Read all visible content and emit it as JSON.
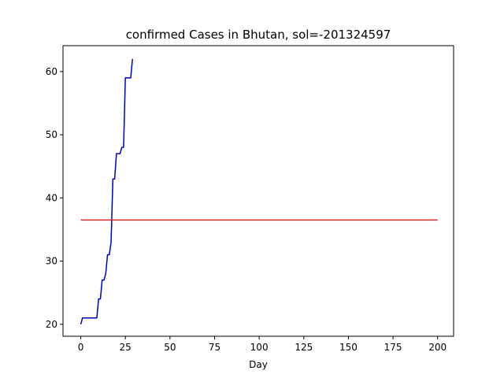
{
  "chart_data": {
    "type": "line",
    "title": "confirmed Cases in Bhutan, sol=-201324597",
    "xlabel": "Day",
    "ylabel": "",
    "xlim": [
      -9.95,
      208.95
    ],
    "ylim": [
      18.1,
      64.1
    ],
    "xticks": [
      0,
      25,
      50,
      75,
      100,
      125,
      150,
      175,
      200
    ],
    "yticks": [
      20,
      30,
      40,
      50,
      60
    ],
    "grid": false,
    "series": [
      {
        "color": "#0000cc",
        "x": [
          0,
          1,
          2,
          3,
          4,
          5,
          6,
          7,
          8,
          9,
          10,
          11,
          12,
          13,
          14,
          15,
          16,
          17,
          18,
          19,
          20,
          21,
          22,
          23,
          24,
          25,
          26,
          27,
          28,
          29
        ],
        "y": [
          20,
          21,
          21,
          21,
          21,
          21,
          21,
          21,
          21,
          21,
          24,
          24,
          27,
          27,
          28,
          31,
          31,
          33,
          43,
          43,
          47,
          47,
          47,
          48,
          48,
          59,
          59,
          59,
          59,
          62
        ]
      },
      {
        "color": "#d62728",
        "x": [
          0,
          200
        ],
        "y": [
          36.5,
          36.5
        ]
      }
    ]
  }
}
